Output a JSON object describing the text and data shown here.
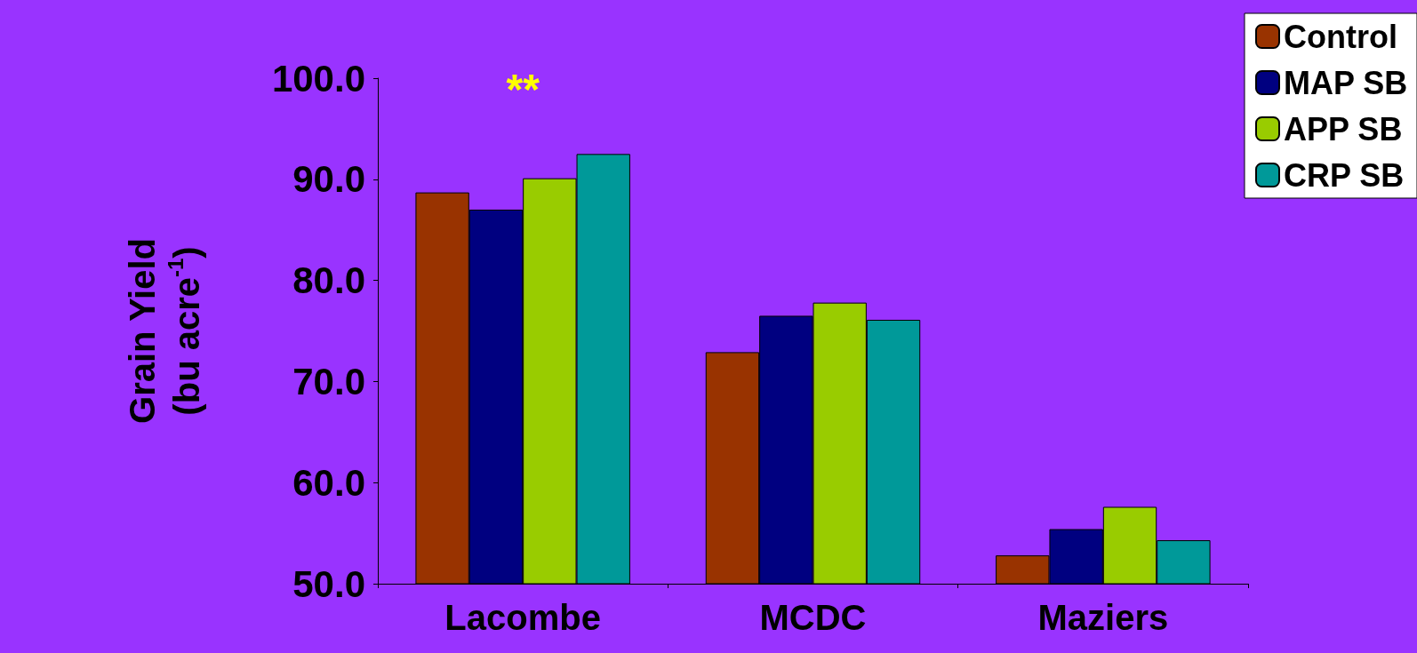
{
  "chart_data": {
    "type": "bar",
    "ylabel": "Grain Yield\n(bu acre$^{-1}$)",
    "categories": [
      "Lacombe",
      "MCDC",
      "Maziers"
    ],
    "series": [
      {
        "name": "Control",
        "color": "#993300",
        "values": [
          88.7,
          72.9,
          52.8
        ]
      },
      {
        "name": "MAP SB",
        "color": "#000080",
        "values": [
          87.0,
          76.5,
          55.4
        ]
      },
      {
        "name": "APP SB",
        "color": "#99cc00",
        "values": [
          90.1,
          77.8,
          57.6
        ]
      },
      {
        "name": "CRP SB",
        "color": "#009999",
        "values": [
          92.5,
          76.1,
          54.3
        ]
      }
    ],
    "ylim": [
      50,
      100
    ],
    "yticks": [
      {
        "value": 50,
        "label": "50.0"
      },
      {
        "value": 60,
        "label": "60.0"
      },
      {
        "value": 70,
        "label": "70.0"
      },
      {
        "value": 80,
        "label": "80.0"
      },
      {
        "value": 90,
        "label": "90.0"
      },
      {
        "value": 100,
        "label": "100.0"
      }
    ],
    "annotations": [
      "**"
    ],
    "grid": false,
    "legend": "top right"
  }
}
